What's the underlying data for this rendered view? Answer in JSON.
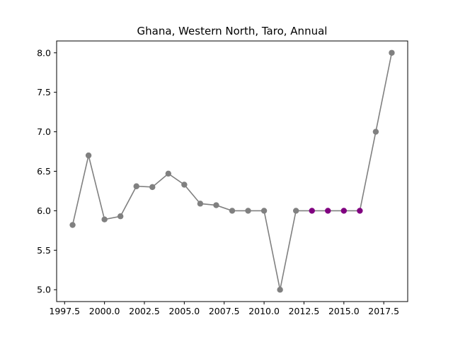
{
  "chart_data": {
    "type": "line",
    "title": "Ghana, Western North, Taro, Annual",
    "xlabel": "",
    "ylabel": "",
    "xlim": [
      1997.0,
      2019.0
    ],
    "ylim": [
      4.85,
      8.15
    ],
    "grid": false,
    "x_ticks": [
      1997.5,
      2000.0,
      2002.5,
      2005.0,
      2007.5,
      2010.0,
      2012.5,
      2015.0,
      2017.5
    ],
    "x_tick_labels": [
      "1997.5",
      "2000.0",
      "2002.5",
      "2005.0",
      "2007.5",
      "2010.0",
      "2012.5",
      "2015.0",
      "2017.5"
    ],
    "y_ticks": [
      5.0,
      5.5,
      6.0,
      6.5,
      7.0,
      7.5,
      8.0
    ],
    "y_tick_labels": [
      "5.0",
      "5.5",
      "6.0",
      "6.5",
      "7.0",
      "7.5",
      "8.0"
    ],
    "line_color": "#808080",
    "marker_color": "#808080",
    "highlight_color": "#800080",
    "points": [
      {
        "x": 1998,
        "y": 5.82
      },
      {
        "x": 1999,
        "y": 6.7
      },
      {
        "x": 2000,
        "y": 5.89
      },
      {
        "x": 2001,
        "y": 5.93
      },
      {
        "x": 2002,
        "y": 6.31
      },
      {
        "x": 2003,
        "y": 6.3
      },
      {
        "x": 2004,
        "y": 6.47
      },
      {
        "x": 2005,
        "y": 6.33
      },
      {
        "x": 2006,
        "y": 6.09
      },
      {
        "x": 2007,
        "y": 6.07
      },
      {
        "x": 2008,
        "y": 6.0
      },
      {
        "x": 2009,
        "y": 6.0
      },
      {
        "x": 2010,
        "y": 6.0
      },
      {
        "x": 2011,
        "y": 5.0
      },
      {
        "x": 2012,
        "y": 6.0
      },
      {
        "x": 2013,
        "y": 6.0,
        "highlight": true
      },
      {
        "x": 2014,
        "y": 6.0,
        "highlight": true
      },
      {
        "x": 2015,
        "y": 6.0,
        "highlight": true
      },
      {
        "x": 2016,
        "y": 6.0,
        "highlight": true
      },
      {
        "x": 2017,
        "y": 7.0
      },
      {
        "x": 2018,
        "y": 8.0
      }
    ]
  }
}
